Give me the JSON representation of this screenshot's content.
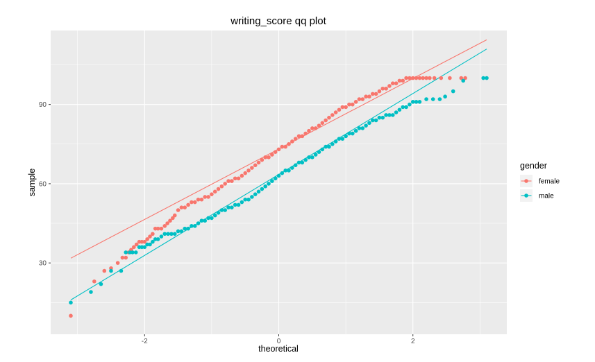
{
  "chart_data": {
    "type": "scatter",
    "title": "writing_score qq plot",
    "xlabel": "theoretical",
    "ylabel": "sample",
    "xlim": [
      -3.4,
      3.4
    ],
    "ylim": [
      3,
      118
    ],
    "xticks": [
      -2,
      0,
      2
    ],
    "xtick_labels": [
      "-2",
      "0",
      "2"
    ],
    "yticks": [
      30,
      60,
      90
    ],
    "ytick_labels": [
      "30",
      "60",
      "90"
    ],
    "grid": true,
    "legend": {
      "title": "gender",
      "placement": "right"
    },
    "series": [
      {
        "name": "female",
        "color": "#F8766D",
        "qq_line": [
          [
            -3.1,
            31.8
          ],
          [
            3.1,
            114.5
          ]
        ],
        "points": [
          [
            -3.1,
            10
          ],
          [
            -2.75,
            23
          ],
          [
            -2.6,
            27
          ],
          [
            -2.5,
            28
          ],
          [
            -2.4,
            30
          ],
          [
            -2.33,
            32
          ],
          [
            -2.28,
            32
          ],
          [
            -2.24,
            34
          ],
          [
            -2.2,
            35
          ],
          [
            -2.16,
            36
          ],
          [
            -2.12,
            37
          ],
          [
            -2.08,
            38
          ],
          [
            -2.04,
            38
          ],
          [
            -2.0,
            38
          ],
          [
            -1.96,
            39
          ],
          [
            -1.92,
            40
          ],
          [
            -1.88,
            41
          ],
          [
            -1.84,
            43
          ],
          [
            -1.8,
            43
          ],
          [
            -1.75,
            43
          ],
          [
            -1.7,
            44
          ],
          [
            -1.66,
            45
          ],
          [
            -1.62,
            46
          ],
          [
            -1.58,
            47
          ],
          [
            -1.55,
            48
          ],
          [
            -1.5,
            50
          ],
          [
            -1.45,
            51
          ],
          [
            -1.4,
            51
          ],
          [
            -1.35,
            52
          ],
          [
            -1.3,
            53
          ],
          [
            -1.25,
            53
          ],
          [
            -1.2,
            54
          ],
          [
            -1.15,
            54
          ],
          [
            -1.1,
            55
          ],
          [
            -1.05,
            55
          ],
          [
            -1.0,
            56
          ],
          [
            -0.95,
            57
          ],
          [
            -0.9,
            58
          ],
          [
            -0.85,
            59
          ],
          [
            -0.8,
            60
          ],
          [
            -0.75,
            61
          ],
          [
            -0.7,
            61
          ],
          [
            -0.65,
            62
          ],
          [
            -0.6,
            62
          ],
          [
            -0.55,
            63
          ],
          [
            -0.5,
            64
          ],
          [
            -0.45,
            65
          ],
          [
            -0.4,
            66
          ],
          [
            -0.35,
            67
          ],
          [
            -0.3,
            68
          ],
          [
            -0.25,
            69
          ],
          [
            -0.2,
            70
          ],
          [
            -0.15,
            70
          ],
          [
            -0.1,
            71
          ],
          [
            -0.05,
            72
          ],
          [
            0.0,
            73
          ],
          [
            0.05,
            74
          ],
          [
            0.1,
            74
          ],
          [
            0.15,
            75
          ],
          [
            0.2,
            76
          ],
          [
            0.25,
            77
          ],
          [
            0.3,
            78
          ],
          [
            0.35,
            78
          ],
          [
            0.4,
            79
          ],
          [
            0.45,
            80
          ],
          [
            0.5,
            81
          ],
          [
            0.55,
            81
          ],
          [
            0.6,
            82
          ],
          [
            0.65,
            83
          ],
          [
            0.7,
            84
          ],
          [
            0.75,
            85
          ],
          [
            0.8,
            86
          ],
          [
            0.85,
            87
          ],
          [
            0.9,
            88
          ],
          [
            0.95,
            89
          ],
          [
            1.0,
            89
          ],
          [
            1.05,
            90
          ],
          [
            1.1,
            90
          ],
          [
            1.15,
            91
          ],
          [
            1.2,
            92
          ],
          [
            1.25,
            92
          ],
          [
            1.3,
            93
          ],
          [
            1.35,
            93
          ],
          [
            1.4,
            94
          ],
          [
            1.45,
            94
          ],
          [
            1.5,
            95
          ],
          [
            1.55,
            96
          ],
          [
            1.6,
            96
          ],
          [
            1.65,
            97
          ],
          [
            1.7,
            98
          ],
          [
            1.75,
            98
          ],
          [
            1.8,
            99
          ],
          [
            1.85,
            99
          ],
          [
            1.9,
            100
          ],
          [
            1.95,
            100
          ],
          [
            2.0,
            100
          ],
          [
            2.05,
            100
          ],
          [
            2.1,
            100
          ],
          [
            2.15,
            100
          ],
          [
            2.2,
            100
          ],
          [
            2.25,
            100
          ],
          [
            2.32,
            100
          ],
          [
            2.42,
            100
          ],
          [
            2.55,
            100
          ],
          [
            2.72,
            100
          ],
          [
            2.78,
            100
          ]
        ]
      },
      {
        "name": "male",
        "color": "#00BFC4",
        "qq_line": [
          [
            -3.1,
            16
          ],
          [
            3.1,
            111
          ]
        ],
        "points": [
          [
            -3.1,
            15
          ],
          [
            -2.8,
            19
          ],
          [
            -2.65,
            22
          ],
          [
            -2.5,
            27
          ],
          [
            -2.35,
            27
          ],
          [
            -2.28,
            34
          ],
          [
            -2.22,
            34
          ],
          [
            -2.18,
            34
          ],
          [
            -2.13,
            34
          ],
          [
            -2.08,
            36
          ],
          [
            -2.04,
            36
          ],
          [
            -2.0,
            36
          ],
          [
            -1.96,
            37
          ],
          [
            -1.92,
            37
          ],
          [
            -1.88,
            38
          ],
          [
            -1.84,
            39
          ],
          [
            -1.8,
            39
          ],
          [
            -1.75,
            40
          ],
          [
            -1.7,
            41
          ],
          [
            -1.65,
            41
          ],
          [
            -1.6,
            41
          ],
          [
            -1.55,
            41
          ],
          [
            -1.5,
            42
          ],
          [
            -1.45,
            42
          ],
          [
            -1.4,
            43
          ],
          [
            -1.35,
            43
          ],
          [
            -1.3,
            44
          ],
          [
            -1.25,
            44
          ],
          [
            -1.2,
            45
          ],
          [
            -1.15,
            46
          ],
          [
            -1.1,
            46
          ],
          [
            -1.05,
            47
          ],
          [
            -1.0,
            47
          ],
          [
            -0.95,
            48
          ],
          [
            -0.9,
            49
          ],
          [
            -0.85,
            50
          ],
          [
            -0.8,
            50
          ],
          [
            -0.75,
            51
          ],
          [
            -0.7,
            51
          ],
          [
            -0.65,
            52
          ],
          [
            -0.6,
            52
          ],
          [
            -0.55,
            53
          ],
          [
            -0.5,
            54
          ],
          [
            -0.45,
            54
          ],
          [
            -0.4,
            55
          ],
          [
            -0.35,
            56
          ],
          [
            -0.3,
            57
          ],
          [
            -0.25,
            58
          ],
          [
            -0.2,
            59
          ],
          [
            -0.15,
            60
          ],
          [
            -0.1,
            61
          ],
          [
            -0.05,
            62
          ],
          [
            0.0,
            63
          ],
          [
            0.05,
            64
          ],
          [
            0.1,
            65
          ],
          [
            0.15,
            65
          ],
          [
            0.2,
            66
          ],
          [
            0.25,
            67
          ],
          [
            0.3,
            68
          ],
          [
            0.35,
            68
          ],
          [
            0.4,
            69
          ],
          [
            0.45,
            70
          ],
          [
            0.5,
            70
          ],
          [
            0.55,
            71
          ],
          [
            0.6,
            72
          ],
          [
            0.65,
            73
          ],
          [
            0.7,
            74
          ],
          [
            0.75,
            74
          ],
          [
            0.8,
            75
          ],
          [
            0.85,
            76
          ],
          [
            0.9,
            77
          ],
          [
            0.95,
            77
          ],
          [
            1.0,
            78
          ],
          [
            1.05,
            79
          ],
          [
            1.1,
            79
          ],
          [
            1.15,
            80
          ],
          [
            1.2,
            81
          ],
          [
            1.25,
            81
          ],
          [
            1.3,
            82
          ],
          [
            1.35,
            83
          ],
          [
            1.4,
            84
          ],
          [
            1.45,
            84
          ],
          [
            1.5,
            85
          ],
          [
            1.55,
            85
          ],
          [
            1.6,
            86
          ],
          [
            1.65,
            86
          ],
          [
            1.7,
            86
          ],
          [
            1.75,
            87
          ],
          [
            1.8,
            88
          ],
          [
            1.85,
            89
          ],
          [
            1.9,
            89
          ],
          [
            1.95,
            90
          ],
          [
            2.0,
            91
          ],
          [
            2.05,
            91
          ],
          [
            2.1,
            91
          ],
          [
            2.2,
            92
          ],
          [
            2.3,
            92
          ],
          [
            2.4,
            92
          ],
          [
            2.48,
            93
          ],
          [
            2.6,
            95
          ],
          [
            2.75,
            99
          ],
          [
            3.05,
            100
          ],
          [
            3.1,
            100
          ]
        ]
      }
    ]
  }
}
